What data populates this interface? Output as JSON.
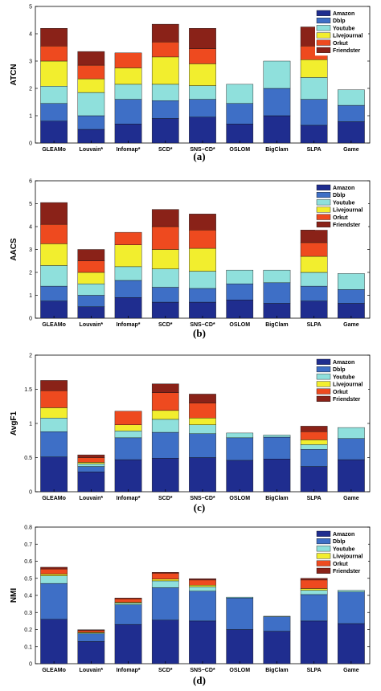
{
  "colors": {
    "Amazon": "#1f2d8f",
    "Dblp": "#3e6fc6",
    "Youtube": "#8fe0dc",
    "Livejournal": "#f2ee2e",
    "Orkut": "#ee4a1f",
    "Friendster": "#8a2218"
  },
  "chart_data": [
    {
      "type": "bar",
      "stacked": true,
      "caption": "(a)",
      "ylabel": "ATCN",
      "ylim": [
        0,
        5
      ],
      "yticks": [
        0,
        1,
        2,
        3,
        4,
        5
      ],
      "legend_position": "top-right",
      "categories": [
        "GLEAMo",
        "Louvain*",
        "Infomap*",
        "SCD*",
        "SNS−CD*",
        "OSLOM",
        "BigClam",
        "SLPA",
        "Game"
      ],
      "series": [
        {
          "name": "Amazon",
          "values": [
            0.8,
            0.5,
            0.7,
            0.9,
            0.95,
            0.7,
            1.0,
            0.65,
            0.78
          ]
        },
        {
          "name": "Dblp",
          "values": [
            0.65,
            0.5,
            0.9,
            0.65,
            0.65,
            0.75,
            1.0,
            0.95,
            0.6
          ]
        },
        {
          "name": "Youtube",
          "values": [
            0.63,
            0.85,
            0.55,
            0.6,
            0.5,
            0.7,
            1.0,
            0.8,
            0.57
          ]
        },
        {
          "name": "Livejournal",
          "values": [
            0.92,
            0.5,
            0.6,
            1.0,
            0.8,
            0,
            0,
            0.65,
            0
          ]
        },
        {
          "name": "Orkut",
          "values": [
            0.55,
            0.5,
            0.55,
            0.55,
            0.55,
            0,
            0,
            0.5,
            0
          ]
        },
        {
          "name": "Friendster",
          "values": [
            0.65,
            0.5,
            0,
            0.65,
            0.75,
            0,
            0,
            0.7,
            0
          ]
        }
      ]
    },
    {
      "type": "bar",
      "stacked": true,
      "caption": "(b)",
      "ylabel": "AACS",
      "ylim": [
        0,
        6
      ],
      "yticks": [
        0,
        1,
        2,
        3,
        4,
        5,
        6
      ],
      "legend_position": "top-right",
      "categories": [
        "GLEAMo",
        "Louvain*",
        "Infomap*",
        "SCD*",
        "SNS−CD*",
        "OSLOM",
        "BigClam",
        "SLPA",
        "Game"
      ],
      "series": [
        {
          "name": "Amazon",
          "values": [
            0.75,
            0.5,
            0.9,
            0.7,
            0.7,
            0.8,
            0.65,
            0.75,
            0.65
          ]
        },
        {
          "name": "Dblp",
          "values": [
            0.65,
            0.5,
            0.75,
            0.65,
            0.6,
            0.7,
            0.9,
            0.65,
            0.6
          ]
        },
        {
          "name": "Youtube",
          "values": [
            0.9,
            0.5,
            0.6,
            0.8,
            0.75,
            0.6,
            0.55,
            0.6,
            0.7
          ]
        },
        {
          "name": "Livejournal",
          "values": [
            0.95,
            0.5,
            0.95,
            0.85,
            1.0,
            0,
            0,
            0.7,
            0
          ]
        },
        {
          "name": "Orkut",
          "values": [
            0.85,
            0.5,
            0.55,
            1.0,
            0.8,
            0,
            0,
            0.6,
            0
          ]
        },
        {
          "name": "Friendster",
          "values": [
            0.95,
            0.5,
            0,
            0.75,
            0.7,
            0,
            0,
            0.55,
            0
          ]
        }
      ]
    },
    {
      "type": "bar",
      "stacked": true,
      "caption": "(c)",
      "ylabel": "AvgF1",
      "ylim": [
        0,
        2
      ],
      "yticks": [
        0,
        0.5,
        1,
        1.5,
        2
      ],
      "legend_position": "top-right",
      "categories": [
        "GLEAMo",
        "Louvain*",
        "Infomap*",
        "SCD*",
        "SNS−CD*",
        "OSLOM",
        "BigClam",
        "SLPA",
        "Game"
      ],
      "series": [
        {
          "name": "Amazon",
          "values": [
            0.51,
            0.29,
            0.47,
            0.49,
            0.5,
            0.46,
            0.48,
            0.37,
            0.47
          ]
        },
        {
          "name": "Dblp",
          "values": [
            0.37,
            0.08,
            0.32,
            0.38,
            0.35,
            0.33,
            0.32,
            0.25,
            0.31
          ]
        },
        {
          "name": "Youtube",
          "values": [
            0.2,
            0.04,
            0.1,
            0.19,
            0.13,
            0.07,
            0.03,
            0.07,
            0.16
          ]
        },
        {
          "name": "Livejournal",
          "values": [
            0.15,
            0.02,
            0.09,
            0.13,
            0.1,
            0,
            0,
            0.07,
            0
          ]
        },
        {
          "name": "Orkut",
          "values": [
            0.25,
            0.07,
            0.2,
            0.26,
            0.22,
            0,
            0,
            0.12,
            0
          ]
        },
        {
          "name": "Friendster",
          "values": [
            0.15,
            0.04,
            0,
            0.13,
            0.13,
            0,
            0,
            0.08,
            0
          ]
        }
      ]
    },
    {
      "type": "bar",
      "stacked": true,
      "caption": "(d)",
      "ylabel": "NMI",
      "ylim": [
        0,
        0.8
      ],
      "yticks": [
        0,
        0.1,
        0.2,
        0.3,
        0.4,
        0.5,
        0.6,
        0.7,
        0.8
      ],
      "legend_position": "top-right",
      "categories": [
        "GLEAMo",
        "Louvain*",
        "Infomap*",
        "SCD*",
        "SNS−CD*",
        "OSLOM",
        "BigClam",
        "SLPA",
        "Game"
      ],
      "series": [
        {
          "name": "Amazon",
          "values": [
            0.26,
            0.13,
            0.23,
            0.255,
            0.25,
            0.2,
            0.19,
            0.25,
            0.235
          ]
        },
        {
          "name": "Dblp",
          "values": [
            0.21,
            0.045,
            0.115,
            0.19,
            0.175,
            0.185,
            0.085,
            0.155,
            0.185
          ]
        },
        {
          "name": "Youtube",
          "values": [
            0.045,
            0.005,
            0.01,
            0.04,
            0.025,
            0.005,
            0.003,
            0.025,
            0.01
          ]
        },
        {
          "name": "Livejournal",
          "values": [
            0.01,
            0.004,
            0.005,
            0.01,
            0.01,
            0,
            0,
            0.01,
            0
          ]
        },
        {
          "name": "Orkut",
          "values": [
            0.03,
            0.01,
            0.02,
            0.035,
            0.03,
            0,
            0,
            0.05,
            0
          ]
        },
        {
          "name": "Friendster",
          "values": [
            0.01,
            0.005,
            0.005,
            0.005,
            0.008,
            0,
            0,
            0.01,
            0
          ]
        }
      ]
    }
  ]
}
